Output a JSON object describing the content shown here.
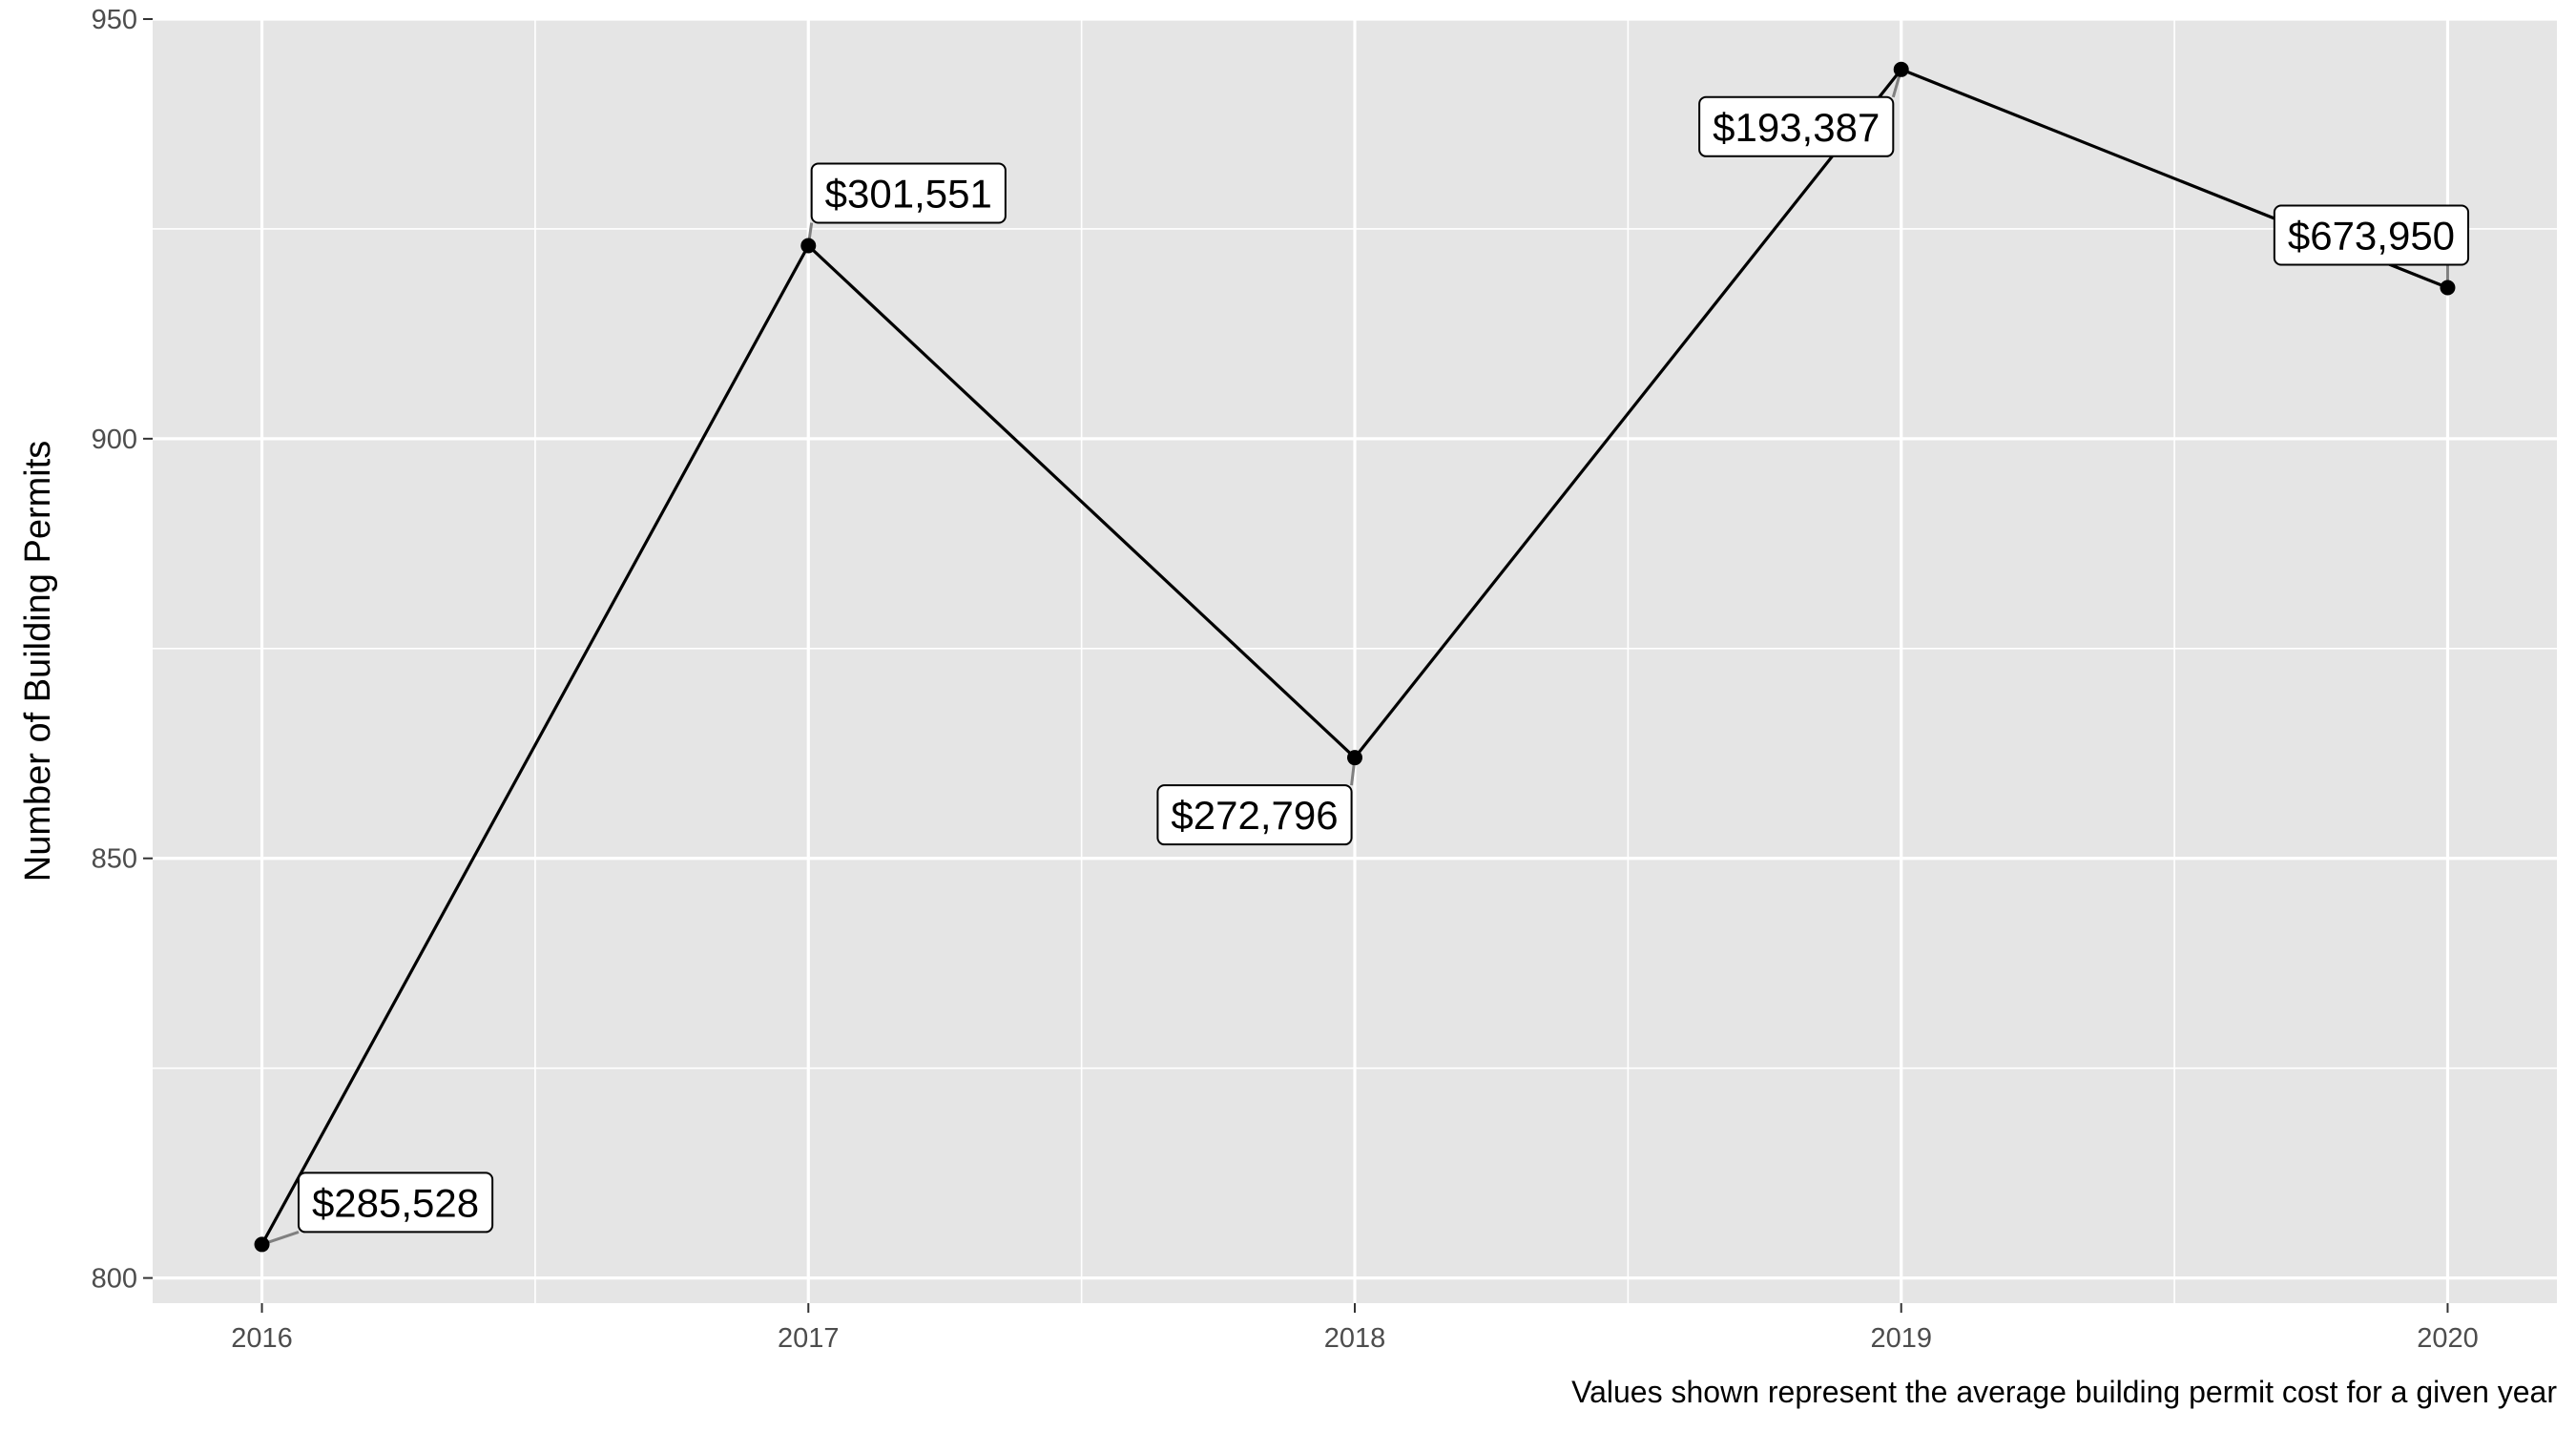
{
  "chart_data": {
    "type": "line",
    "x": [
      2016,
      2017,
      2018,
      2019,
      2020
    ],
    "series": [
      {
        "values": [
          804,
          923,
          862,
          944,
          918
        ],
        "labels": [
          "$285,528",
          "$301,551",
          "$272,796",
          "$193,387",
          "$673,950"
        ]
      }
    ],
    "xlabel": "",
    "ylabel": "Number of Building Permits",
    "caption": "Values shown represent the average building permit cost for a given year",
    "xlim": [
      2015.8,
      2020.2
    ],
    "ylim": [
      797,
      950
    ],
    "x_ticks": [
      "2016",
      "2017",
      "2018",
      "2019",
      "2020"
    ],
    "y_ticks": [
      "800",
      "850",
      "900",
      "950"
    ],
    "grid": true,
    "legend": "none",
    "colors": {
      "panel_background": "#e5e5e5",
      "grid_line": "#ffffff",
      "line": "#000000",
      "point": "#000000",
      "label_segment": "#808080",
      "label_box": "#ffffff",
      "label_border": "#000000"
    }
  }
}
